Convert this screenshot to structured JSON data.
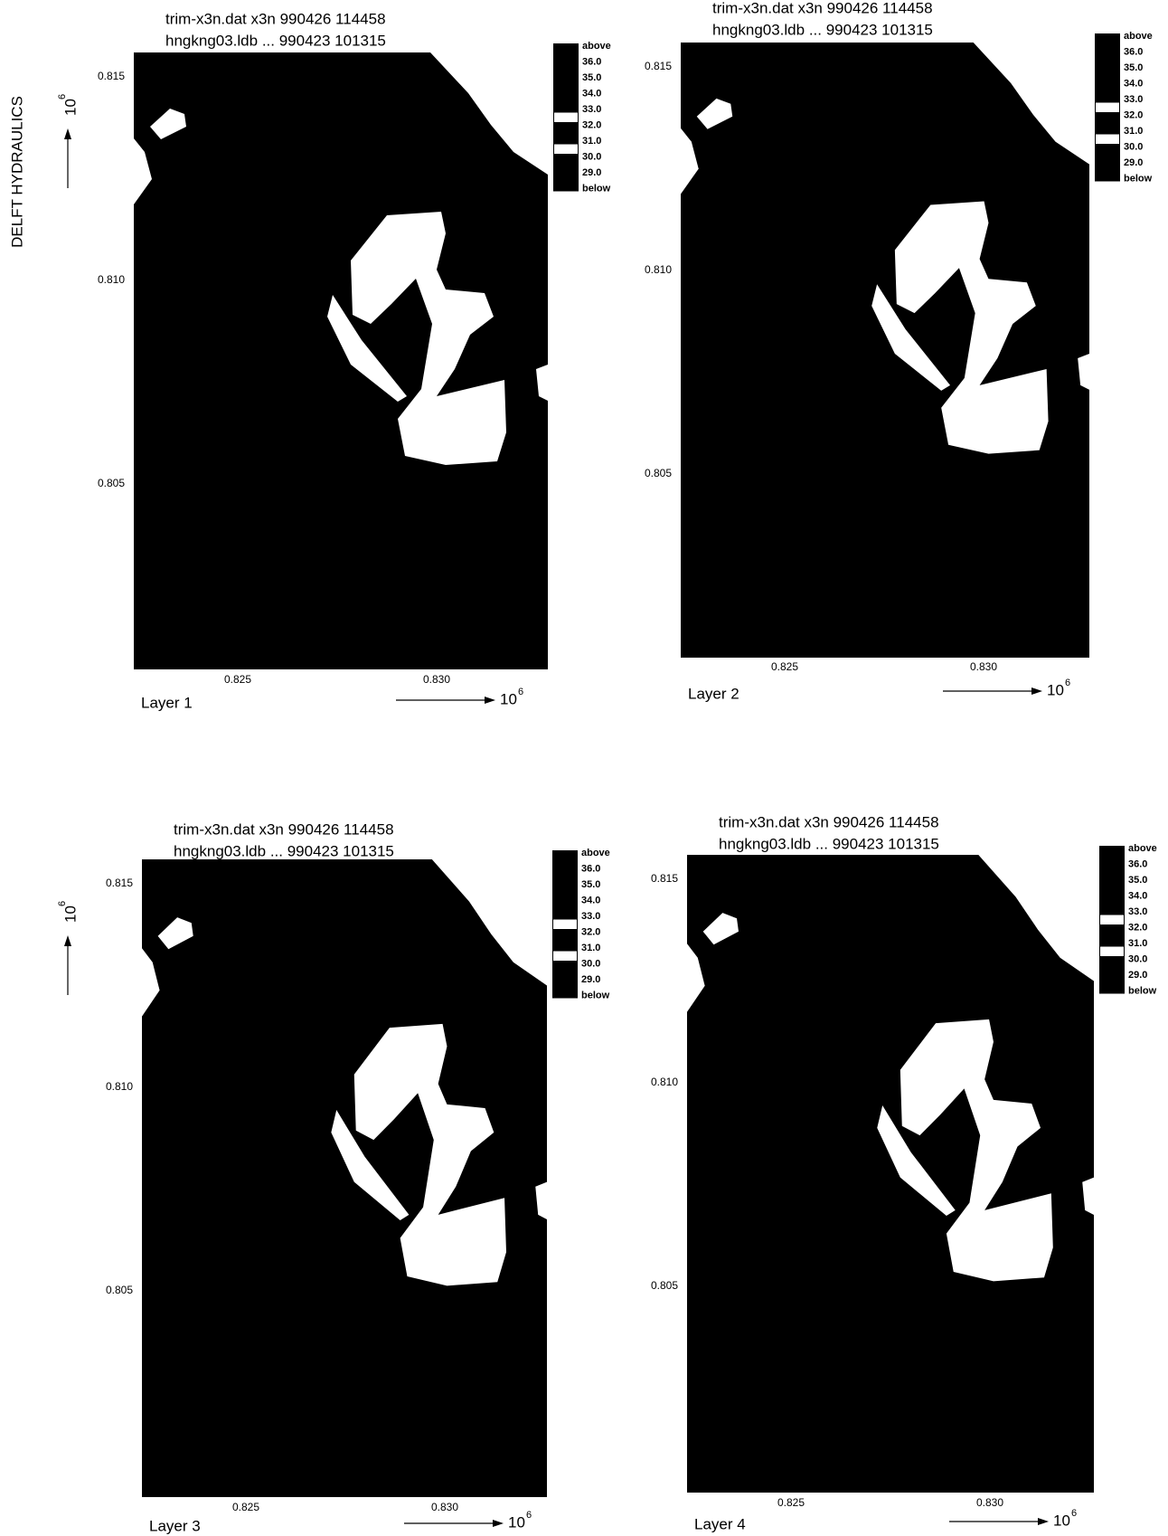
{
  "side_label": "DELFT HYDRAULICS",
  "legend_colors": [
    "#000",
    "#000",
    "#000",
    "#000",
    "#fff",
    "#000",
    "#fff",
    "#000",
    "#000"
  ],
  "panels": [
    {
      "title": [
        "trim-x3n.dat x3n 990426 114458",
        "hngkng03.ldb ... 990423 101315"
      ],
      "layer": "Layer 1",
      "xticks": [
        "0.825",
        "0.830"
      ],
      "yticks": [
        "0.815",
        "0.810",
        "0.805"
      ],
      "x_multiplier": {
        "base": "10",
        "exp": "6"
      },
      "y_multiplier": {
        "base": "10",
        "exp": "6"
      },
      "legend": [
        "above",
        "36.0",
        "35.0",
        "34.0",
        "33.0",
        "32.0",
        "31.0",
        "30.0",
        "29.0",
        "below"
      ]
    },
    {
      "title": [
        "trim-x3n.dat x3n 990426 114458",
        "hngkng03.ldb ... 990423 101315"
      ],
      "layer": "Layer 2",
      "xticks": [
        "0.825",
        "0.830"
      ],
      "yticks": [
        "0.815",
        "0.810",
        "0.805"
      ],
      "x_multiplier": {
        "base": "10",
        "exp": "6"
      },
      "legend": [
        "above",
        "36.0",
        "35.0",
        "34.0",
        "33.0",
        "32.0",
        "31.0",
        "30.0",
        "29.0",
        "below"
      ]
    },
    {
      "title": [
        "trim-x3n.dat x3n 990426 114458",
        "hngkng03.ldb ... 990423 101315"
      ],
      "layer": "Layer 3",
      "xticks": [
        "0.825",
        "0.830"
      ],
      "yticks": [
        "0.815",
        "0.810",
        "0.805"
      ],
      "x_multiplier": {
        "base": "10",
        "exp": "6"
      },
      "y_multiplier": {
        "base": "10",
        "exp": "6"
      },
      "legend": [
        "above",
        "36.0",
        "35.0",
        "34.0",
        "33.0",
        "32.0",
        "31.0",
        "30.0",
        "29.0",
        "below"
      ]
    },
    {
      "title": [
        "trim-x3n.dat x3n 990426 114458",
        "hngkng03.ldb ... 990423 101315"
      ],
      "layer": "Layer 4",
      "xticks": [
        "0.825",
        "0.830"
      ],
      "yticks": [
        "0.815",
        "0.810",
        "0.805"
      ],
      "x_multiplier": {
        "base": "10",
        "exp": "6"
      },
      "legend": [
        "above",
        "36.0",
        "35.0",
        "34.0",
        "33.0",
        "32.0",
        "31.0",
        "30.0",
        "29.0",
        "below"
      ]
    }
  ]
}
